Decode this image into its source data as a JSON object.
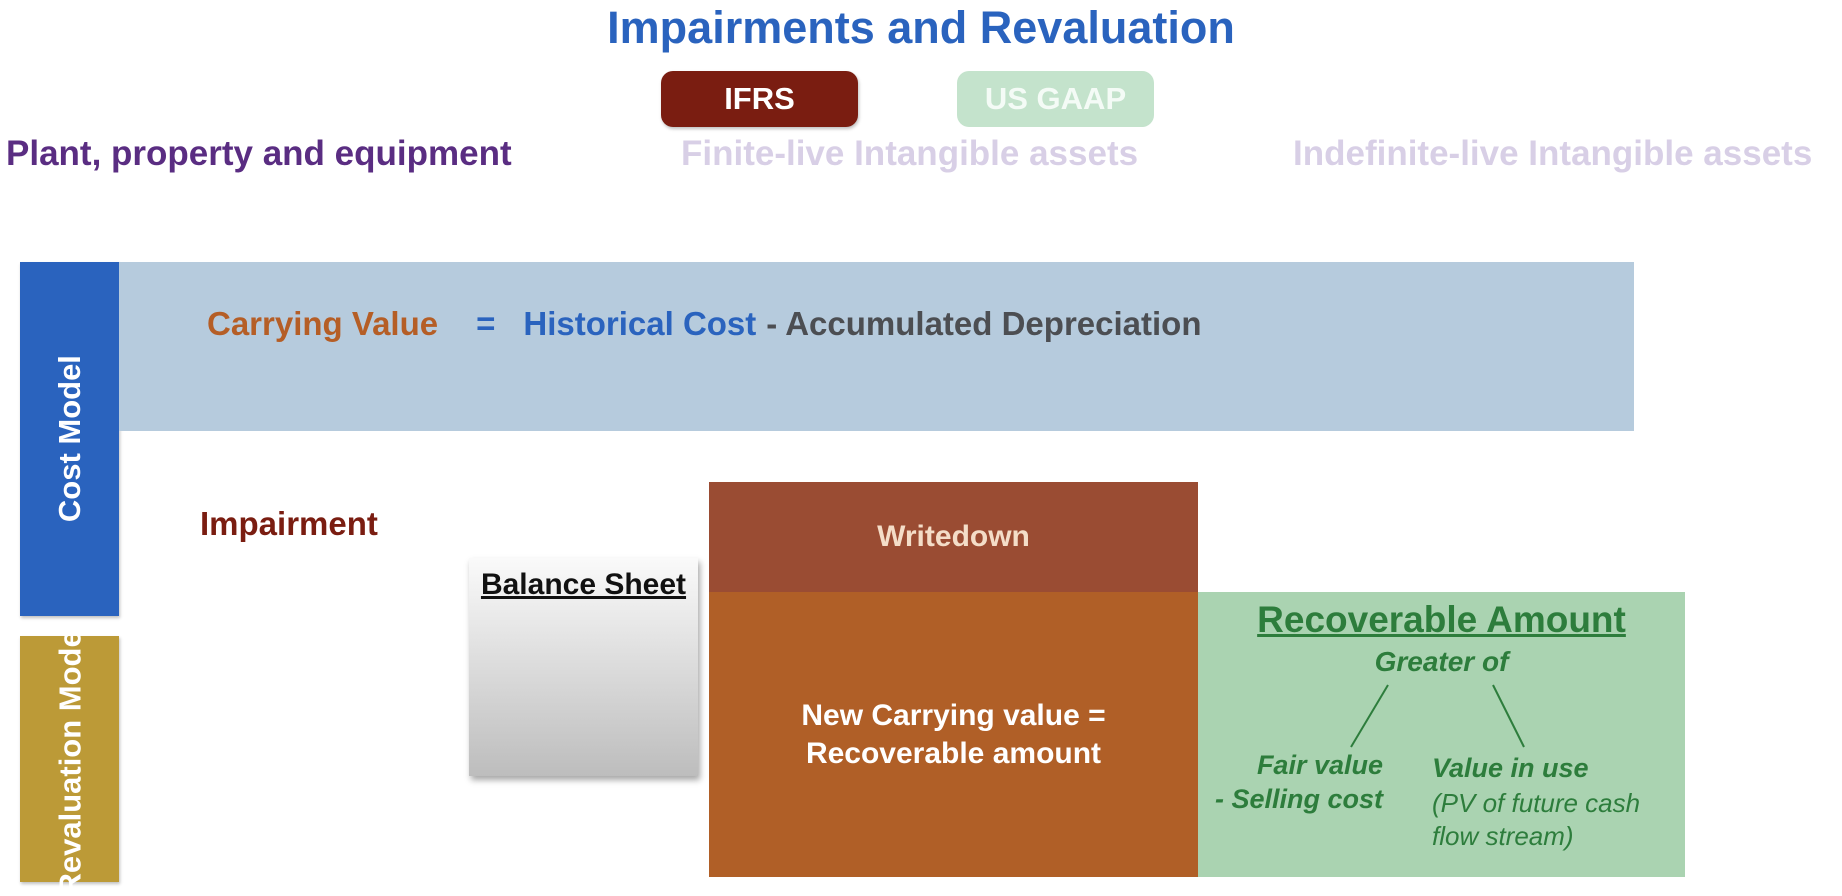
{
  "title": "Impairments and Revaluation",
  "standards": {
    "ifrs": "IFRS",
    "us_gaap": "US GAAP"
  },
  "asset_types": {
    "ppe": "Plant, property and equipment",
    "finite": "Finite-live Intangible assets",
    "indefinite": "Indefinite-live Intangible assets"
  },
  "models": {
    "cost": "Cost Model",
    "revaluation": "Revaluation Model"
  },
  "formula": {
    "carrying_value": "Carrying Value",
    "equals": "=",
    "historical_cost": "Historical Cost",
    "accumulated_depreciation": "- Accumulated Depreciation"
  },
  "impairment": {
    "label": "Impairment",
    "balance_sheet": "Balance Sheet",
    "writedown": "Writedown",
    "new_carrying_value_line1": "New Carrying value =",
    "new_carrying_value_line2": "Recoverable amount"
  },
  "recoverable": {
    "title": "Recoverable Amount",
    "greater_of": "Greater of",
    "fair_value_line1": "Fair value",
    "fair_value_line2": "- Selling cost",
    "value_in_use": "Value in use",
    "pv_line1": "(PV of  future cash",
    "pv_line2": "flow stream)"
  },
  "colors": {
    "title_blue": "#2a63be",
    "ifrs_red": "#7a1d11",
    "us_gaap_green": "#c4e3cc",
    "ppe_purple": "#5a2d82",
    "inactive_lavender": "#d8cfe6",
    "cost_model_blue": "#2a63be",
    "revaluation_gold": "#bc9a37",
    "cost_band": "#b6cbdd",
    "writedown_brown": "#9a4c33",
    "carrying_orange": "#b05f27",
    "recoverable_green_bg": "#aad3b1",
    "recoverable_green_text": "#2d7d3c"
  }
}
